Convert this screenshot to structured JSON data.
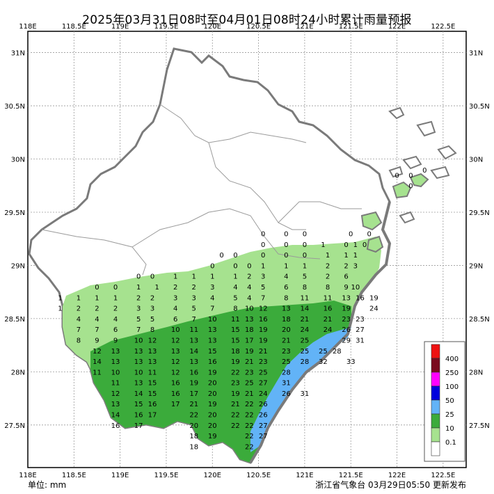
{
  "title": "2025年03月31日08时至04月01日08时24小时累计雨量预报",
  "unit_label": "单位: mm",
  "source": "浙江省气象台 03月29日05:50 更新发布",
  "axes": {
    "lon_ticks": [
      "118E",
      "118.5E",
      "119E",
      "119.5E",
      "120E",
      "120.5E",
      "121E",
      "121.5E",
      "122E",
      "122.5E"
    ],
    "lat_ticks": [
      "31N",
      "30.5N",
      "30N",
      "29.5N",
      "29N",
      "28.5N",
      "28N",
      "27.5N"
    ]
  },
  "legend": {
    "entries": [
      {
        "label": "400",
        "color": "#7a0a1e"
      },
      {
        "label": "250",
        "color": "#ff00ff"
      },
      {
        "label": "100",
        "color": "#0000dd"
      },
      {
        "label": "50",
        "color": "#62b3f7"
      },
      {
        "label": "25",
        "color": "#3bab3b"
      },
      {
        "label": "10",
        "color": "#a6e28f"
      },
      {
        "label": "0.1",
        "color": "#ffffff"
      }
    ],
    "top_color": "#ee1111"
  },
  "colors": {
    "zone_10": "#a6e28f",
    "zone_25": "#3bab3b",
    "zone_50": "#62b3f7",
    "coast": "#7a7a7a",
    "boundary": "#888888"
  },
  "station_rows": [
    {
      "lat": 29.3,
      "vals": [
        [
          "120.55",
          "0"
        ],
        [
          "120.8",
          "0"
        ],
        [
          "121.0",
          "0"
        ],
        [
          "121.5",
          "0"
        ],
        [
          "121.7",
          "0"
        ]
      ]
    },
    {
      "lat": 29.2,
      "vals": [
        [
          "120.55",
          "0"
        ],
        [
          "120.8",
          "0"
        ],
        [
          "121.0",
          "0"
        ],
        [
          "121.2",
          "1"
        ],
        [
          "121.45",
          "0"
        ],
        [
          "121.55",
          "1"
        ],
        [
          "121.65",
          "0"
        ]
      ]
    },
    {
      "lat": 29.1,
      "vals": [
        [
          "120.1",
          "0"
        ],
        [
          "120.25",
          "0"
        ],
        [
          "120.55",
          "0"
        ],
        [
          "120.8",
          "0"
        ],
        [
          "121.0",
          "0"
        ],
        [
          "121.25",
          "1"
        ],
        [
          "121.45",
          "1"
        ],
        [
          "121.55",
          "1"
        ]
      ]
    },
    {
      "lat": 29.0,
      "vals": [
        [
          "120.0",
          "0"
        ],
        [
          "120.25",
          "0"
        ],
        [
          "120.4",
          "0"
        ],
        [
          "120.55",
          "1"
        ],
        [
          "120.8",
          "1"
        ],
        [
          "121.0",
          "1"
        ],
        [
          "121.25",
          "2"
        ],
        [
          "121.45",
          "2"
        ],
        [
          "121.55",
          "3"
        ]
      ]
    },
    {
      "lat": 28.9,
      "vals": [
        [
          "119.2",
          "0"
        ],
        [
          "119.35",
          "0"
        ],
        [
          "119.6",
          "1"
        ],
        [
          "119.8",
          "1"
        ],
        [
          "120.0",
          "1"
        ],
        [
          "120.25",
          "1"
        ],
        [
          "120.4",
          "2"
        ],
        [
          "120.55",
          "3"
        ],
        [
          "120.8",
          "4"
        ],
        [
          "121.0",
          "5"
        ],
        [
          "121.25",
          "2"
        ],
        [
          "121.45",
          "6"
        ]
      ]
    },
    {
      "lat": 28.8,
      "vals": [
        [
          "118.75",
          "0"
        ],
        [
          "118.95",
          "0"
        ],
        [
          "119.2",
          "1"
        ],
        [
          "119.4",
          "1"
        ],
        [
          "119.6",
          "2"
        ],
        [
          "119.8",
          "2"
        ],
        [
          "120.0",
          "3"
        ],
        [
          "120.25",
          "4"
        ],
        [
          "120.4",
          "4"
        ],
        [
          "120.55",
          "5"
        ],
        [
          "120.8",
          "6"
        ],
        [
          "121.0",
          "8"
        ],
        [
          "121.25",
          "8"
        ],
        [
          "121.45",
          "9"
        ],
        [
          "121.55",
          "10"
        ]
      ]
    },
    {
      "lat": 28.7,
      "vals": [
        [
          "118.35",
          "1"
        ],
        [
          "118.55",
          "1"
        ],
        [
          "118.75",
          "1"
        ],
        [
          "118.95",
          "1"
        ],
        [
          "119.2",
          "2"
        ],
        [
          "119.35",
          "2"
        ],
        [
          "119.6",
          "3"
        ],
        [
          "119.8",
          "3"
        ],
        [
          "120.0",
          "4"
        ],
        [
          "120.25",
          "5"
        ],
        [
          "120.4",
          "4"
        ],
        [
          "120.55",
          "7"
        ],
        [
          "120.8",
          "8"
        ],
        [
          "121.0",
          "11"
        ],
        [
          "121.25",
          "11"
        ],
        [
          "121.45",
          "13"
        ],
        [
          "121.6",
          "16"
        ],
        [
          "121.75",
          "19"
        ]
      ]
    },
    {
      "lat": 28.6,
      "vals": [
        [
          "118.35",
          "1"
        ],
        [
          "118.55",
          "2"
        ],
        [
          "118.75",
          "2"
        ],
        [
          "118.95",
          "2"
        ],
        [
          "119.2",
          "3"
        ],
        [
          "119.35",
          "3"
        ],
        [
          "119.6",
          "4"
        ],
        [
          "119.8",
          "5"
        ],
        [
          "120.0",
          "7"
        ],
        [
          "120.25",
          "8"
        ],
        [
          "120.4",
          "10"
        ],
        [
          "120.55",
          "12"
        ],
        [
          "120.8",
          "13"
        ],
        [
          "121.0",
          "14"
        ],
        [
          "121.25",
          "16"
        ],
        [
          "121.45",
          "19"
        ],
        [
          "121.75",
          "24"
        ]
      ]
    },
    {
      "lat": 28.5,
      "vals": [
        [
          "118.55",
          "4"
        ],
        [
          "118.75",
          "4"
        ],
        [
          "118.95",
          "4"
        ],
        [
          "119.2",
          "5"
        ],
        [
          "119.35",
          "5"
        ],
        [
          "119.6",
          "6"
        ],
        [
          "119.8",
          "7"
        ],
        [
          "120.0",
          "10"
        ],
        [
          "120.25",
          "11"
        ],
        [
          "120.4",
          "13"
        ],
        [
          "120.55",
          "16"
        ],
        [
          "120.8",
          "18"
        ],
        [
          "121.0",
          "21"
        ],
        [
          "121.25",
          "21"
        ],
        [
          "121.45",
          "23"
        ],
        [
          "121.6",
          "23"
        ]
      ]
    },
    {
      "lat": 28.4,
      "vals": [
        [
          "118.55",
          "7"
        ],
        [
          "118.75",
          "7"
        ],
        [
          "118.95",
          "6"
        ],
        [
          "119.2",
          "7"
        ],
        [
          "119.35",
          "8"
        ],
        [
          "119.6",
          "10"
        ],
        [
          "119.8",
          "11"
        ],
        [
          "120.0",
          "13"
        ],
        [
          "120.25",
          "15"
        ],
        [
          "120.4",
          "18"
        ],
        [
          "120.55",
          "19"
        ],
        [
          "120.8",
          "20"
        ],
        [
          "121.0",
          "24"
        ],
        [
          "121.25",
          "24"
        ],
        [
          "121.45",
          "26"
        ],
        [
          "121.6",
          "27"
        ]
      ]
    },
    {
      "lat": 28.3,
      "vals": [
        [
          "118.55",
          "8"
        ],
        [
          "118.75",
          "9"
        ],
        [
          "118.95",
          "9"
        ],
        [
          "119.2",
          "10"
        ],
        [
          "119.35",
          "12"
        ],
        [
          "119.6",
          "12"
        ],
        [
          "119.8",
          "13"
        ],
        [
          "120.0",
          "13"
        ],
        [
          "120.25",
          "15"
        ],
        [
          "120.4",
          "17"
        ],
        [
          "120.55",
          "19"
        ],
        [
          "120.8",
          "21"
        ],
        [
          "121.0",
          "25"
        ],
        [
          "121.45",
          "29"
        ],
        [
          "121.6",
          "31"
        ]
      ]
    },
    {
      "lat": 28.2,
      "vals": [
        [
          "118.75",
          "12"
        ],
        [
          "118.95",
          "13"
        ],
        [
          "119.2",
          "13"
        ],
        [
          "119.35",
          "13"
        ],
        [
          "119.6",
          "13"
        ],
        [
          "119.8",
          "14"
        ],
        [
          "120.0",
          "15"
        ],
        [
          "120.25",
          "18"
        ],
        [
          "120.4",
          "19"
        ],
        [
          "120.55",
          "21"
        ],
        [
          "120.8",
          "23"
        ],
        [
          "121.0",
          "25"
        ],
        [
          "121.2",
          "25"
        ],
        [
          "121.35",
          "28"
        ]
      ]
    },
    {
      "lat": 28.1,
      "vals": [
        [
          "118.75",
          "14"
        ],
        [
          "118.95",
          "13"
        ],
        [
          "119.2",
          "13"
        ],
        [
          "119.35",
          "13"
        ],
        [
          "119.6",
          "12"
        ],
        [
          "119.8",
          "13"
        ],
        [
          "120.0",
          "16"
        ],
        [
          "120.25",
          "19"
        ],
        [
          "120.4",
          "21"
        ],
        [
          "120.55",
          "23"
        ],
        [
          "120.8",
          "25"
        ],
        [
          "121.0",
          "28"
        ],
        [
          "121.2",
          "32"
        ],
        [
          "121.5",
          "33"
        ]
      ]
    },
    {
      "lat": 28.0,
      "vals": [
        [
          "118.75",
          "11"
        ],
        [
          "118.95",
          "10"
        ],
        [
          "119.2",
          "10"
        ],
        [
          "119.35",
          "11"
        ],
        [
          "119.6",
          "12"
        ],
        [
          "119.8",
          "16"
        ],
        [
          "120.0",
          "19"
        ],
        [
          "120.25",
          "22"
        ],
        [
          "120.4",
          "23"
        ],
        [
          "120.55",
          "25"
        ],
        [
          "120.8",
          "28"
        ]
      ]
    },
    {
      "lat": 27.9,
      "vals": [
        [
          "118.95",
          "11"
        ],
        [
          "119.2",
          "13"
        ],
        [
          "119.35",
          "15"
        ],
        [
          "119.6",
          "16"
        ],
        [
          "119.8",
          "19"
        ],
        [
          "120.0",
          "20"
        ],
        [
          "120.25",
          "23"
        ],
        [
          "120.4",
          "25"
        ],
        [
          "120.55",
          "27"
        ],
        [
          "120.8",
          "31"
        ]
      ]
    },
    {
      "lat": 27.8,
      "vals": [
        [
          "118.95",
          "12"
        ],
        [
          "119.2",
          "14"
        ],
        [
          "119.35",
          "15"
        ],
        [
          "119.6",
          "16"
        ],
        [
          "119.8",
          "17"
        ],
        [
          "120.0",
          "20"
        ],
        [
          "120.25",
          "19"
        ],
        [
          "120.4",
          "21"
        ],
        [
          "120.55",
          "24"
        ],
        [
          "120.8",
          "26"
        ],
        [
          "121.0",
          "31"
        ]
      ]
    },
    {
      "lat": 27.7,
      "vals": [
        [
          "118.95",
          "13"
        ],
        [
          "119.2",
          "15"
        ],
        [
          "119.35",
          "16"
        ],
        [
          "119.6",
          "17"
        ],
        [
          "119.8",
          "21"
        ],
        [
          "120.0",
          "19"
        ],
        [
          "120.25",
          "21"
        ],
        [
          "120.4",
          "22"
        ],
        [
          "120.55",
          "26"
        ]
      ]
    },
    {
      "lat": 27.6,
      "vals": [
        [
          "118.95",
          "14"
        ],
        [
          "119.2",
          "16"
        ],
        [
          "119.35",
          "17"
        ],
        [
          "119.8",
          "22"
        ],
        [
          "120.0",
          "20"
        ],
        [
          "120.25",
          "22"
        ],
        [
          "120.4",
          "22"
        ],
        [
          "120.55",
          "26"
        ]
      ]
    },
    {
      "lat": 27.5,
      "vals": [
        [
          "118.95",
          "16"
        ],
        [
          "119.2",
          "17"
        ],
        [
          "119.8",
          "20"
        ],
        [
          "120.0",
          "20"
        ],
        [
          "120.25",
          "22"
        ],
        [
          "120.4",
          "22"
        ],
        [
          "120.55",
          "27"
        ]
      ]
    },
    {
      "lat": 27.4,
      "vals": [
        [
          "119.8",
          "18"
        ],
        [
          "120.0",
          "19"
        ],
        [
          "120.4",
          "22"
        ],
        [
          "120.55",
          "27"
        ]
      ]
    },
    {
      "lat": 27.3,
      "vals": [
        [
          "119.8",
          "18"
        ],
        [
          "120.4",
          "22"
        ]
      ]
    }
  ],
  "island_values": [
    {
      "lon": "122.0",
      "lat": "29.85",
      "v": "0"
    },
    {
      "lon": "122.15",
      "lat": "29.85",
      "v": "0"
    },
    {
      "lon": "122.3",
      "lat": "29.9",
      "v": "0"
    },
    {
      "lon": "122.15",
      "lat": "29.75",
      "v": "0"
    }
  ]
}
